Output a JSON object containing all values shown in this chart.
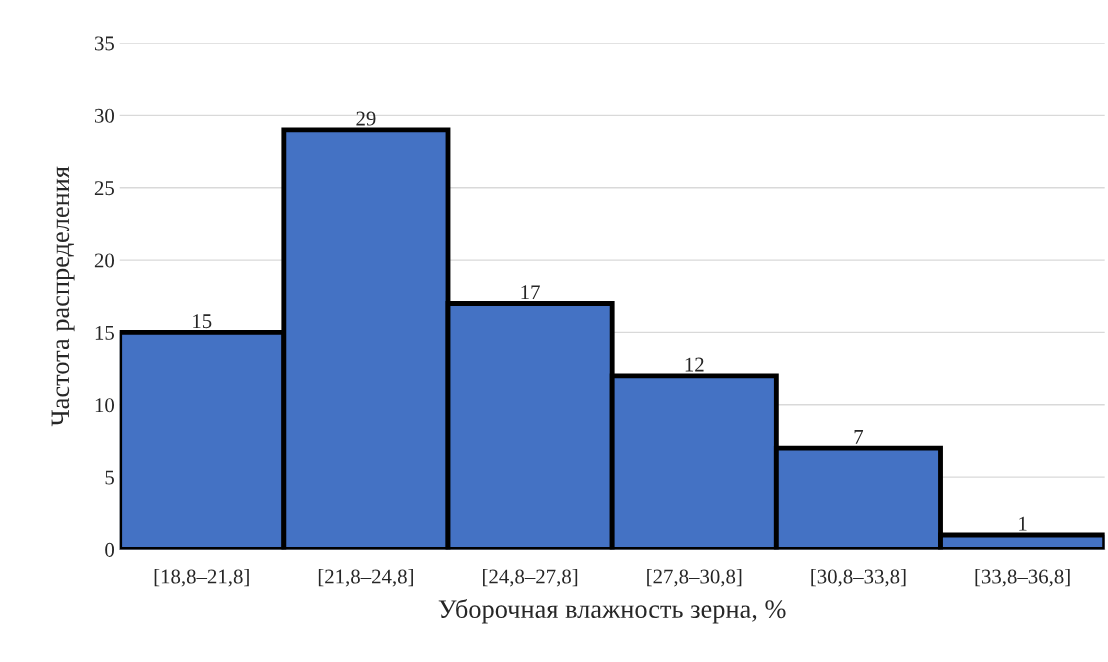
{
  "chart_data": {
    "type": "bar",
    "xlabel": "Уборочная влажность зерна, %",
    "ylabel": "Частота распределения",
    "categories": [
      "[18,8–21,8]",
      "[21,8–24,8]",
      "[24,8–27,8]",
      "[27,8–30,8]",
      "[30,8–33,8]",
      "[33,8–36,8]"
    ],
    "values": [
      15,
      29,
      17,
      12,
      7,
      1
    ],
    "color": "#4472c4",
    "ylim": [
      0,
      35
    ],
    "yticks": [
      0,
      5,
      10,
      15,
      20,
      25,
      30,
      35
    ],
    "grid": "y",
    "data_labels": true
  }
}
